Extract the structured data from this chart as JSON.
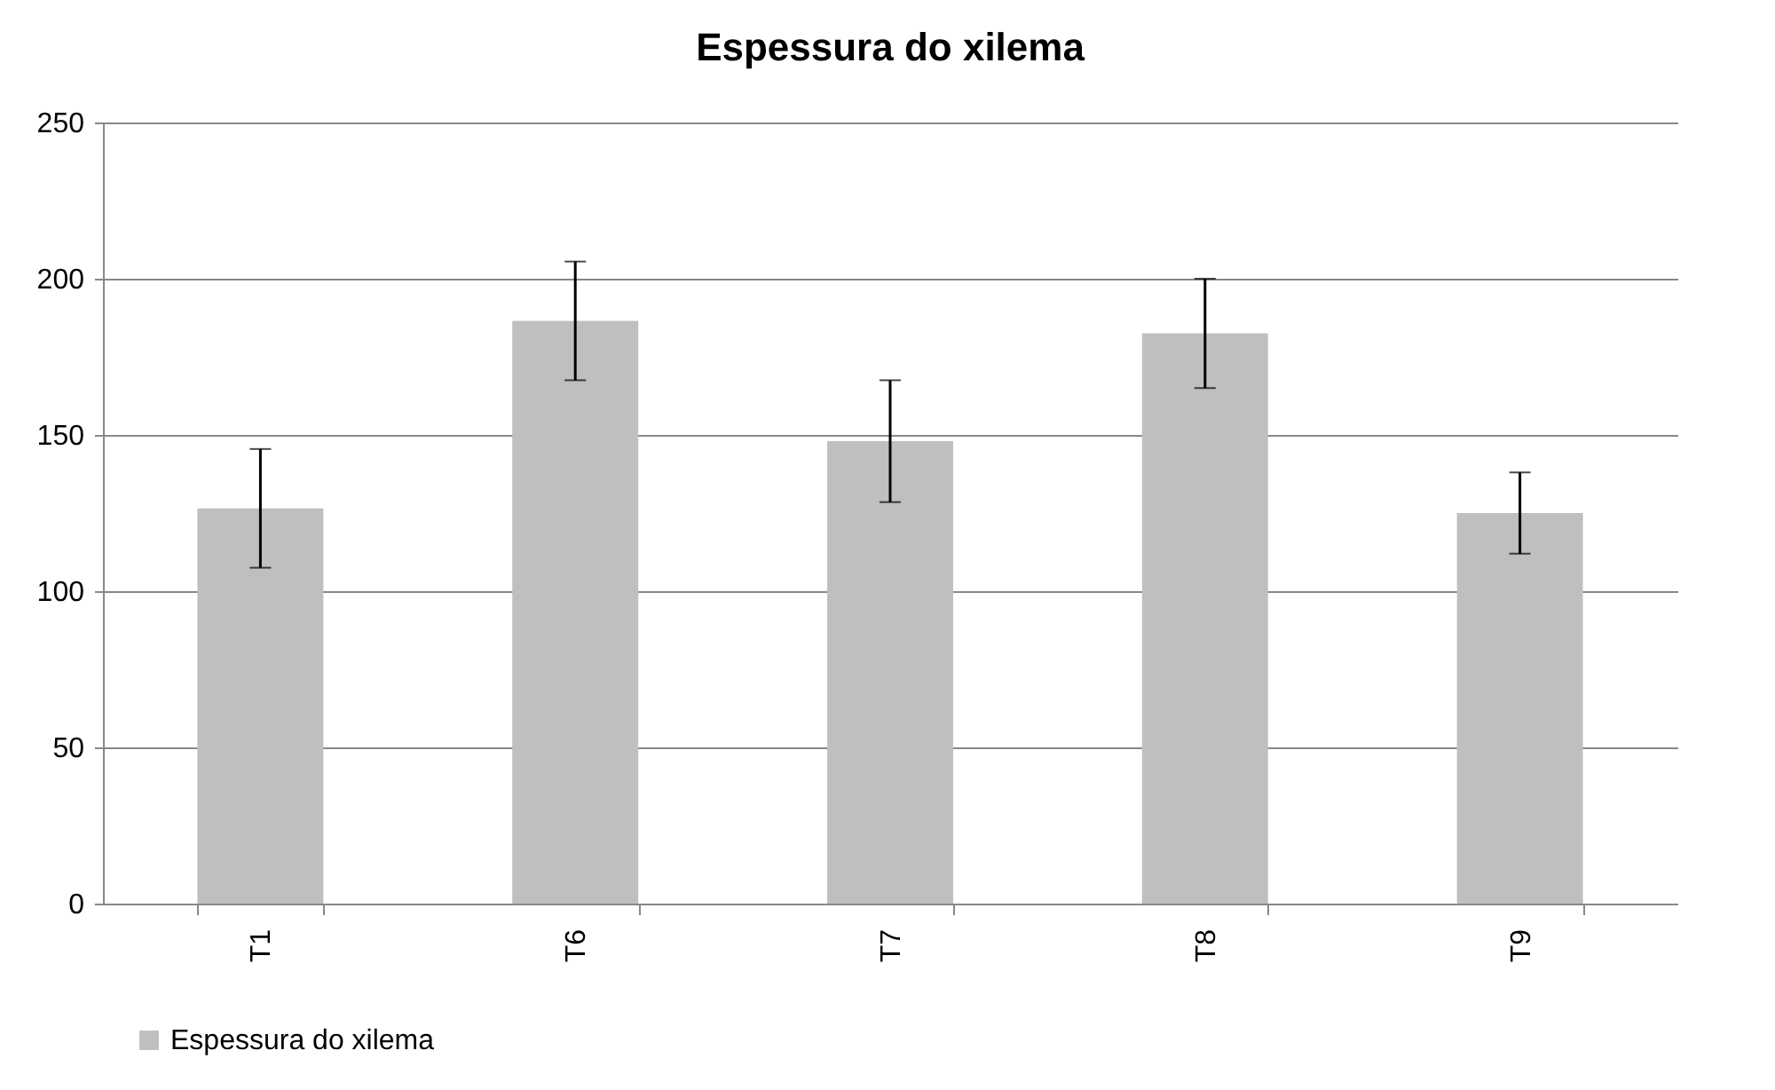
{
  "chart_data": {
    "type": "bar",
    "title": "Espessura do xilema",
    "categories": [
      "T1",
      "T6",
      "T7",
      "T8",
      "T9"
    ],
    "series": [
      {
        "name": "Espessura do xilema",
        "color": "#bfbfbf",
        "values": [
          126.5,
          186.5,
          148,
          182.5,
          125
        ],
        "errors": [
          19,
          19,
          19.5,
          17.5,
          13
        ]
      }
    ],
    "ylim": [
      0,
      250
    ],
    "yticks": [
      0,
      50,
      100,
      150,
      200,
      250
    ],
    "grid": "y",
    "legend": "bottom"
  }
}
